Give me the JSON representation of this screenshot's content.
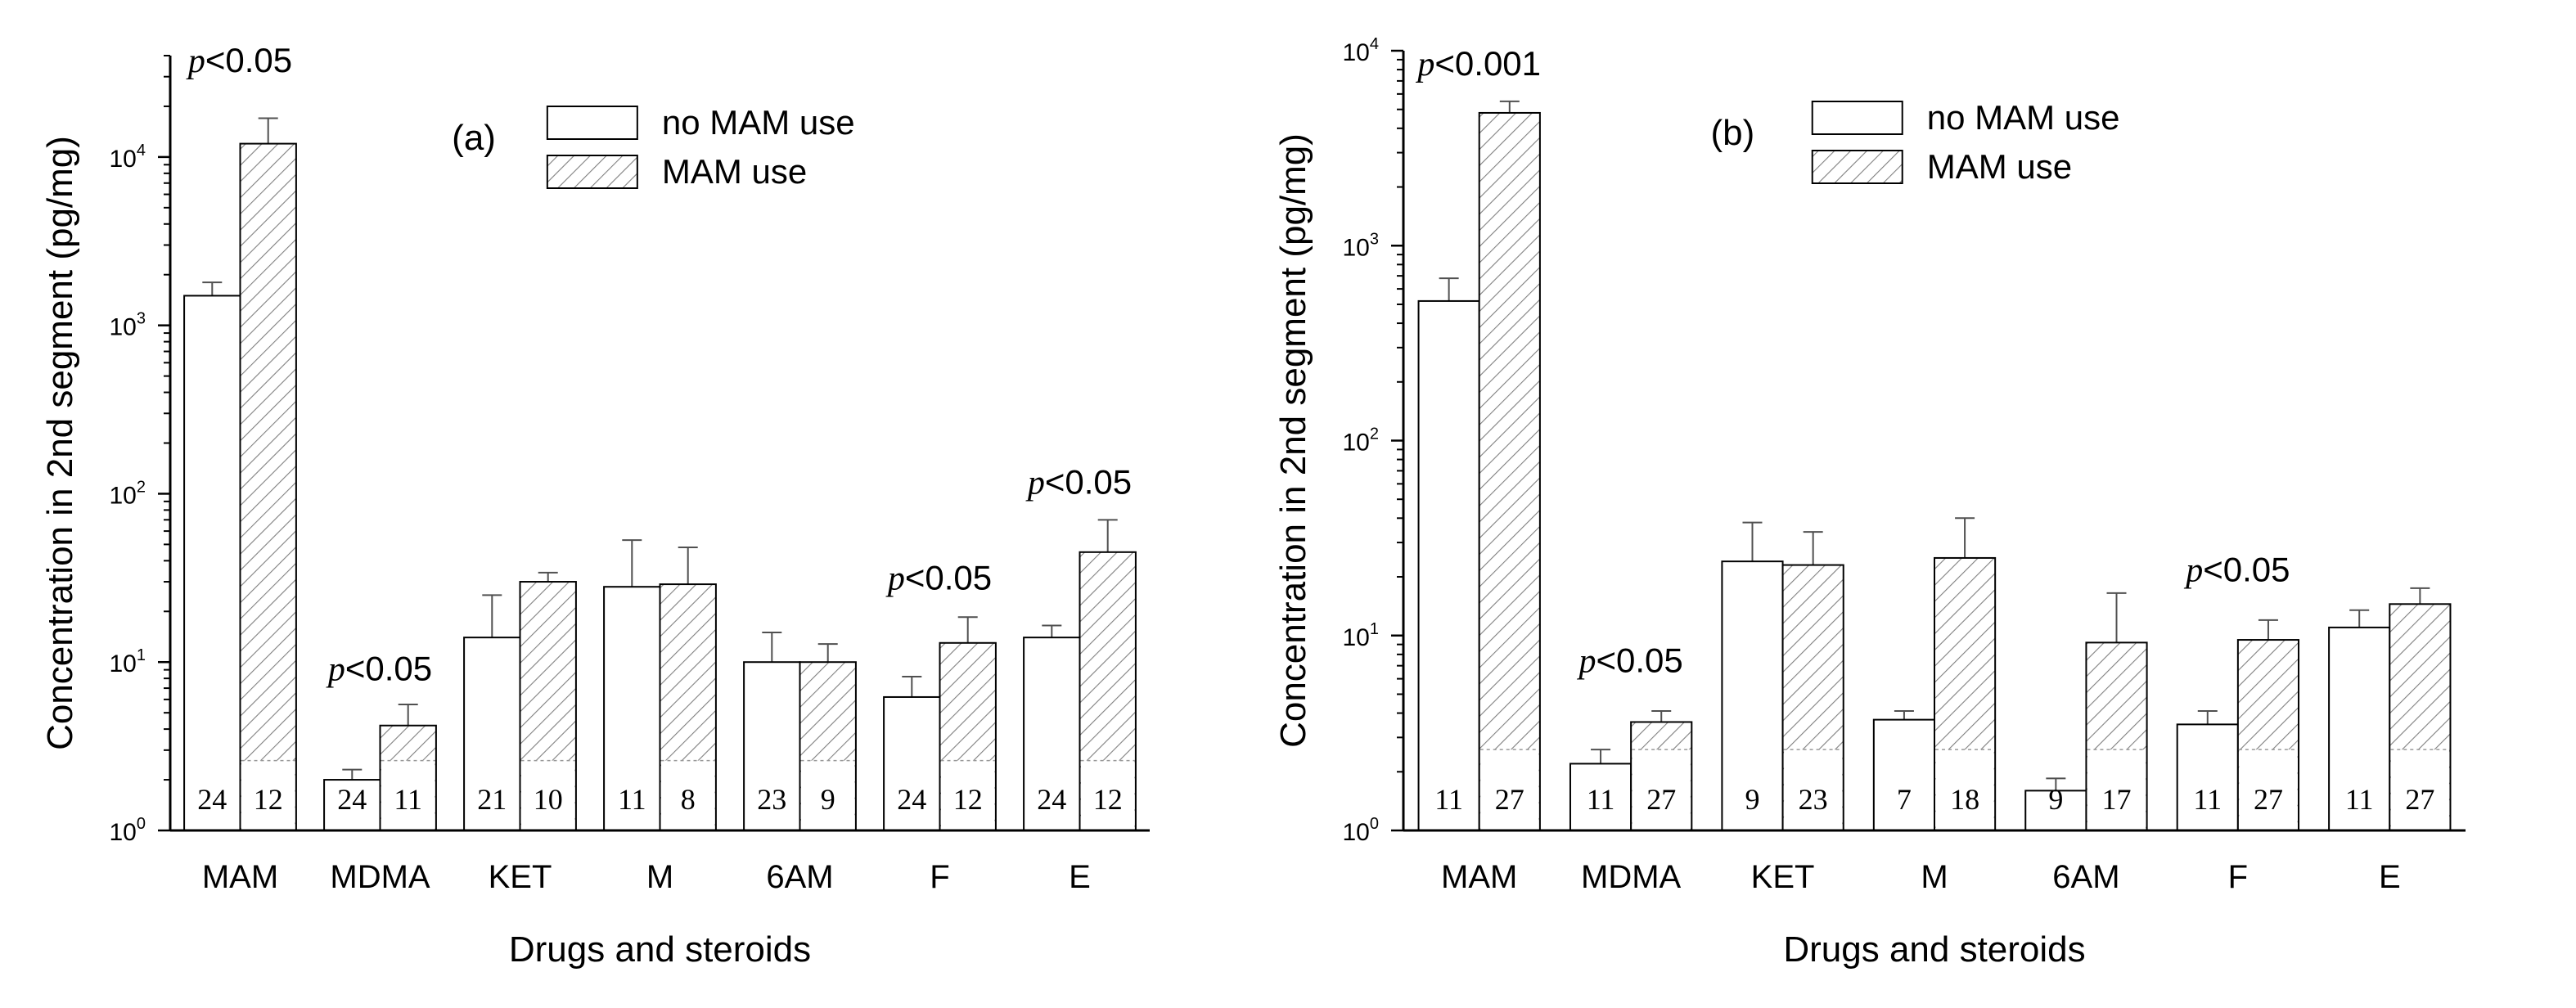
{
  "colors": {
    "axis": "#000000",
    "bar_fill": "#ffffff",
    "hatch": "#808080",
    "error": "#505050"
  },
  "chart_data": [
    {
      "type": "bar",
      "panel_label": "(a)",
      "xlabel": "Drugs and steroids",
      "ylabel": "Concentration in 2nd segment (pg/mg)",
      "yscale": "log",
      "ylim": [
        1,
        40000
      ],
      "yticks": [
        {
          "value": 1,
          "base": "10",
          "exp": "0"
        },
        {
          "value": 10,
          "base": "10",
          "exp": "1"
        },
        {
          "value": 100,
          "base": "10",
          "exp": "2"
        },
        {
          "value": 1000,
          "base": "10",
          "exp": "3"
        },
        {
          "value": 10000,
          "base": "10",
          "exp": "4"
        }
      ],
      "categories": [
        "MAM",
        "MDMA",
        "KET",
        "M",
        "6AM",
        "F",
        "E"
      ],
      "series": [
        {
          "name": "no MAM use",
          "pattern": "none",
          "values": [
            1500,
            2.0,
            14,
            28,
            10,
            6.2,
            14
          ],
          "errors": [
            1800,
            2.3,
            25,
            53,
            15,
            8.2,
            16.5
          ],
          "counts": [
            "24",
            "24",
            "21",
            "11",
            "23",
            "24",
            "24"
          ]
        },
        {
          "name": "MAM use",
          "pattern": "hatch",
          "values": [
            12000,
            4.2,
            30,
            29,
            10,
            13,
            45
          ],
          "errors": [
            17000,
            5.6,
            34,
            48,
            12.8,
            18.5,
            70
          ],
          "counts": [
            "12",
            "11",
            "10",
            "8",
            "9",
            "12",
            "12"
          ]
        }
      ],
      "annotations": [
        {
          "category": "MAM",
          "value": 35000,
          "prefix": "p",
          "text": "<0.05"
        },
        {
          "category": "MDMA",
          "value": 7.8,
          "prefix": "p",
          "text": "<0.05"
        },
        {
          "category": "F",
          "value": 27,
          "prefix": "p",
          "text": "<0.05"
        },
        {
          "category": "E",
          "value": 100,
          "prefix": "p",
          "text": "<0.05"
        }
      ],
      "legend_position": "top-right"
    },
    {
      "type": "bar",
      "panel_label": "(b)",
      "xlabel": "Drugs and steroids",
      "ylabel": "Concentration in 2nd segment (pg/mg)",
      "yscale": "log",
      "ylim": [
        1,
        10000
      ],
      "yticks": [
        {
          "value": 1,
          "base": "10",
          "exp": "0"
        },
        {
          "value": 10,
          "base": "10",
          "exp": "1"
        },
        {
          "value": 100,
          "base": "10",
          "exp": "2"
        },
        {
          "value": 1000,
          "base": "10",
          "exp": "3"
        },
        {
          "value": 10000,
          "base": "10",
          "exp": "4"
        }
      ],
      "categories": [
        "MAM",
        "MDMA",
        "KET",
        "M",
        "6AM",
        "F",
        "E"
      ],
      "series": [
        {
          "name": "no MAM use",
          "pattern": "none",
          "values": [
            520,
            2.2,
            24,
            3.7,
            1.6,
            3.5,
            11
          ],
          "errors": [
            680,
            2.6,
            38,
            4.1,
            1.85,
            4.1,
            13.5
          ],
          "counts": [
            "11",
            "11",
            "9",
            "7",
            "9",
            "11",
            "11"
          ]
        },
        {
          "name": "MAM use",
          "pattern": "hatch",
          "values": [
            4800,
            3.6,
            23,
            25,
            9.2,
            9.5,
            14.5
          ],
          "errors": [
            5500,
            4.1,
            34,
            40,
            16.5,
            12,
            17.5
          ],
          "counts": [
            "27",
            "27",
            "23",
            "18",
            "17",
            "27",
            "27"
          ]
        }
      ],
      "annotations": [
        {
          "category": "MAM",
          "value": 7500,
          "prefix": "p",
          "text": "<0.001"
        },
        {
          "category": "MDMA",
          "value": 6.5,
          "prefix": "p",
          "text": "<0.05"
        },
        {
          "category": "F",
          "value": 19,
          "prefix": "p",
          "text": "<0.05"
        }
      ],
      "legend_position": "top-right"
    }
  ]
}
